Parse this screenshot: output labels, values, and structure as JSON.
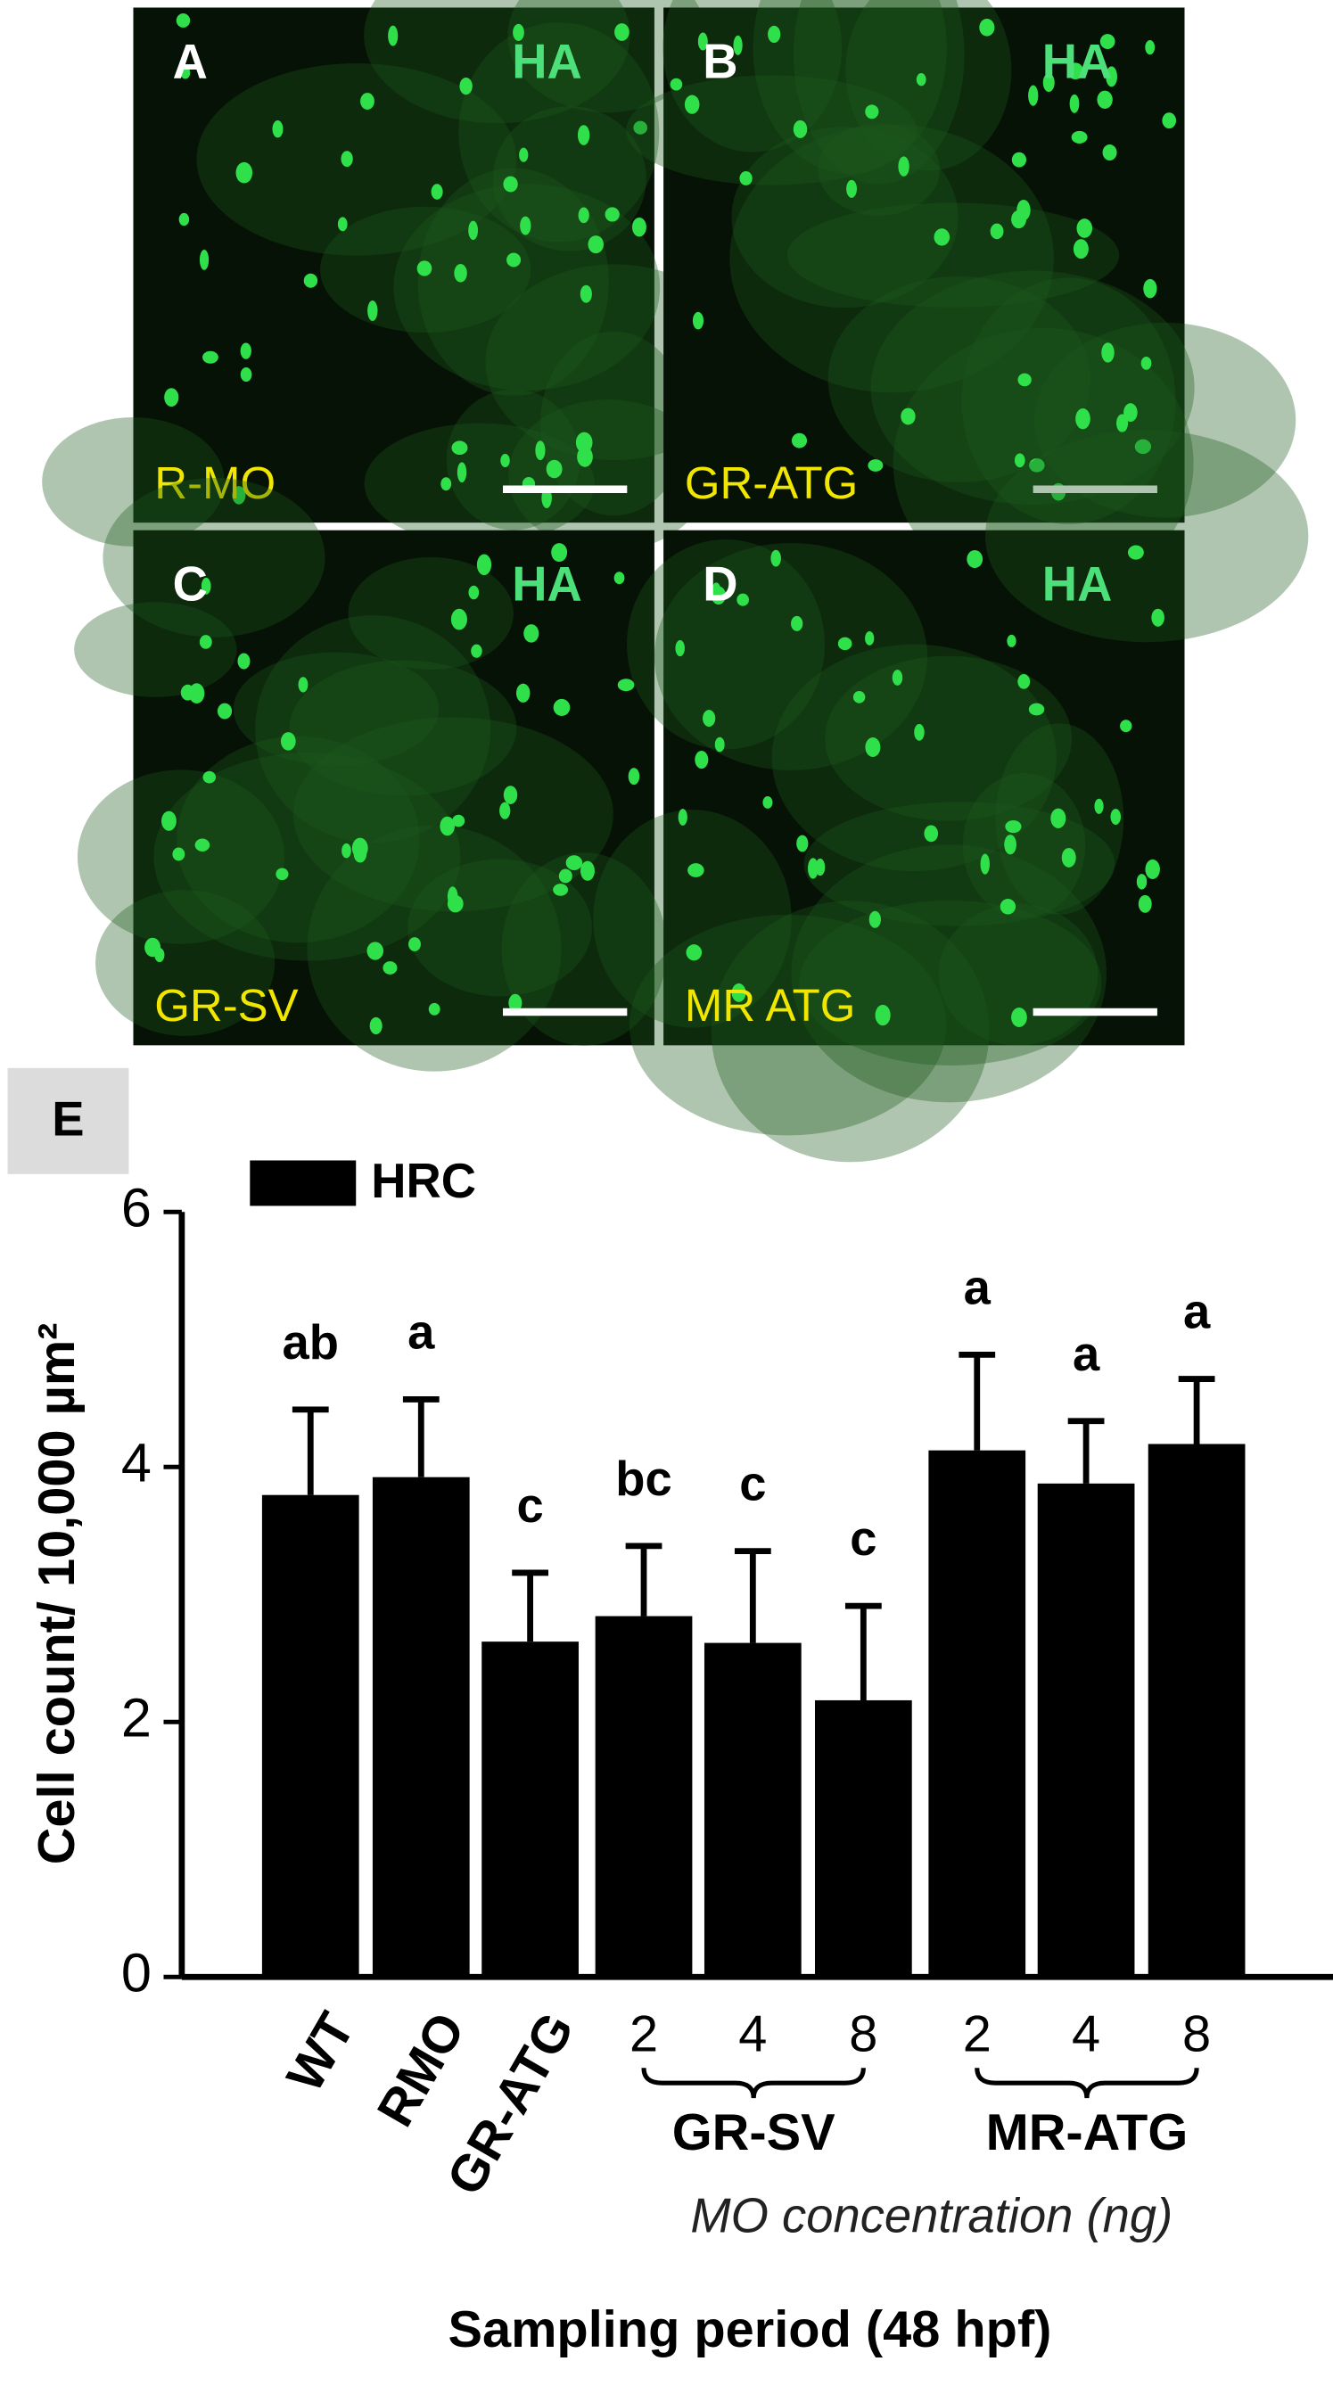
{
  "panels": [
    {
      "letter": "A",
      "stain": "HA",
      "label": "R-MO"
    },
    {
      "letter": "B",
      "stain": "HA",
      "label": "GR-ATG"
    },
    {
      "letter": "C",
      "stain": "HA",
      "label": "GR-SV"
    },
    {
      "letter": "D",
      "stain": "HA",
      "label": "MR ATG"
    }
  ],
  "chart_data": {
    "type": "bar",
    "panel_label": "E",
    "xlabel": "Sampling period (48 hpf)",
    "xsublabel": "MO concentration (ng)",
    "ylabel": "Cell count/ 10,000 µm²",
    "categories": [
      "WT",
      "RMO",
      "GR-ATG",
      "2",
      "4",
      "8",
      "2",
      "4",
      "8"
    ],
    "category_groups": [
      null,
      null,
      null,
      "GR-SV",
      "GR-SV",
      "GR-SV",
      "MR-ATG",
      "MR-ATG",
      "MR-ATG"
    ],
    "series": [
      {
        "name": "HRC",
        "color": "#000000",
        "values": [
          3.78,
          3.92,
          2.63,
          2.83,
          2.62,
          2.17,
          4.13,
          3.87,
          4.18
        ],
        "errors": [
          0.67,
          0.61,
          0.54,
          0.55,
          0.72,
          0.74,
          0.75,
          0.49,
          0.51
        ]
      }
    ],
    "annotations": [
      "ab",
      "a",
      "c",
      "bc",
      "c",
      "c",
      "a",
      "a",
      "a"
    ],
    "ylim": [
      0,
      6
    ],
    "yticks": [
      0,
      2,
      4,
      6
    ],
    "legend": "upper left"
  }
}
